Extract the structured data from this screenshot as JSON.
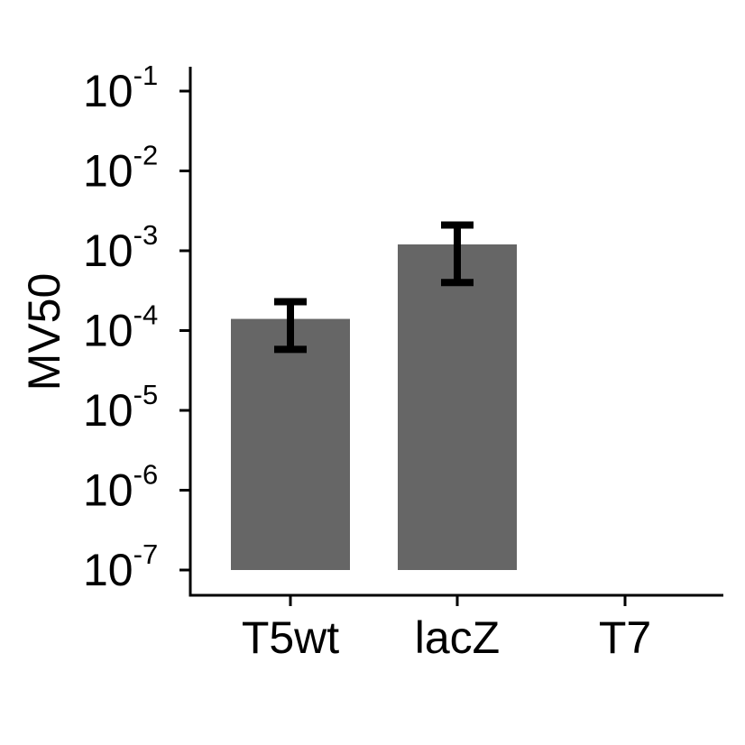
{
  "chart_data": {
    "type": "bar",
    "title": "",
    "xlabel": "",
    "ylabel": "MV50",
    "yscale": "log",
    "ylim": [
      6e-08,
      0.15
    ],
    "bar_baseline": 1e-07,
    "ytick_values": [
      1e-07,
      1e-06,
      1e-05,
      0.0001,
      0.001,
      0.01,
      0.1
    ],
    "ytick_labels": [
      {
        "base": "10",
        "exp": "-7"
      },
      {
        "base": "10",
        "exp": "-6"
      },
      {
        "base": "10",
        "exp": "-5"
      },
      {
        "base": "10",
        "exp": "-4"
      },
      {
        "base": "10",
        "exp": "-3"
      },
      {
        "base": "10",
        "exp": "-2"
      },
      {
        "base": "10",
        "exp": "-1"
      }
    ],
    "categories": [
      "T5wt",
      "lacZ",
      "T7"
    ],
    "values": [
      0.00014,
      0.0012,
      null
    ],
    "error_low": [
      5.8e-05,
      0.0004,
      null
    ],
    "error_high": [
      0.00023,
      0.0021,
      null
    ],
    "grid": false,
    "legend": "none",
    "colors": {
      "bar": "#666666",
      "axis": "#000000",
      "errorbar": "#000000"
    }
  }
}
